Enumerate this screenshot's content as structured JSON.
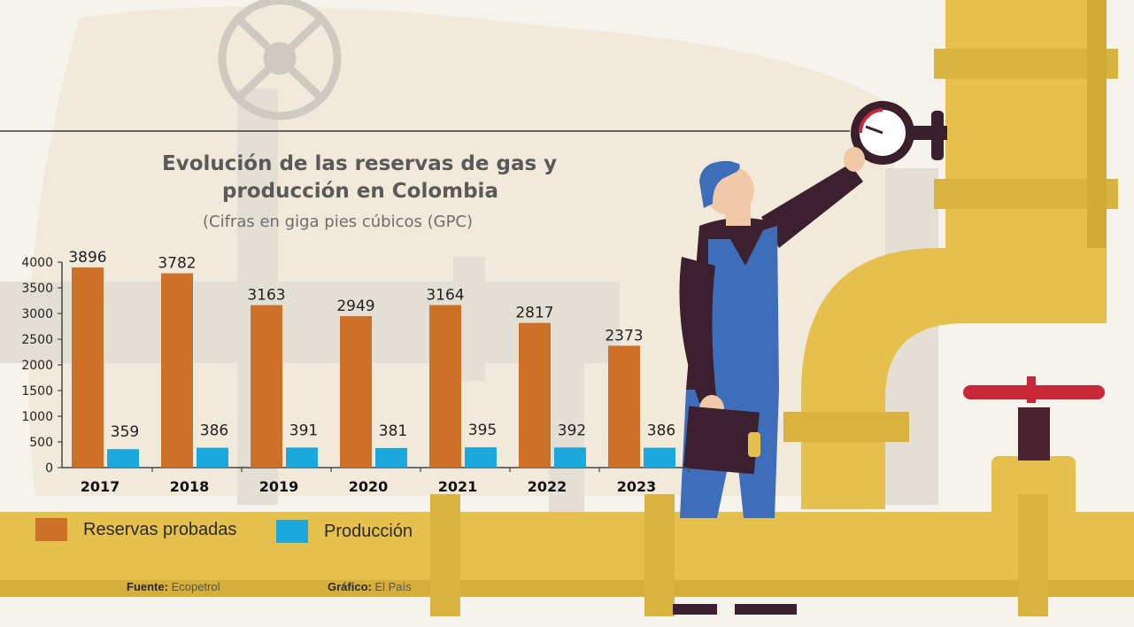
{
  "colors": {
    "reservas": "#cd7128",
    "produccion": "#1aa8dd",
    "pipe": "#e6c04d",
    "pipe_shadow": "#cfa634",
    "background": "#f6f3ec",
    "faded_pipe": "#e3dfd6"
  },
  "header": {
    "title_line1": "Evolución de las reservas de gas y",
    "title_line2": "producción en Colombia",
    "subtitle": "(Cifras en giga pies cúbicos (GPC)"
  },
  "legend": {
    "reservas": "Reservas probadas",
    "produccion": "Producción"
  },
  "footer": {
    "fuente_label": "Fuente:",
    "fuente_value": "Ecopetrol",
    "grafico_label": "Gráfico:",
    "grafico_value": "El País"
  },
  "chart_data": {
    "type": "bar",
    "title": "Evolución de las reservas de gas y producción en Colombia",
    "subtitle": "(Cifras en giga pies cúbicos (GPC)",
    "categories": [
      "2017",
      "2018",
      "2019",
      "2020",
      "2021",
      "2022",
      "2023"
    ],
    "series": [
      {
        "name": "Reservas probadas",
        "color": "#cd7128",
        "values": [
          3896,
          3782,
          3163,
          2949,
          3164,
          2817,
          2373
        ]
      },
      {
        "name": "Producción",
        "color": "#1aa8dd",
        "values": [
          359,
          386,
          391,
          381,
          395,
          392,
          386
        ]
      }
    ],
    "yticks": [
      0,
      500,
      1000,
      1500,
      2000,
      2500,
      3000,
      3500,
      4000
    ],
    "ylim": [
      0,
      4000
    ],
    "data_labels": true,
    "grid": false,
    "legend_position": "bottom-left"
  }
}
